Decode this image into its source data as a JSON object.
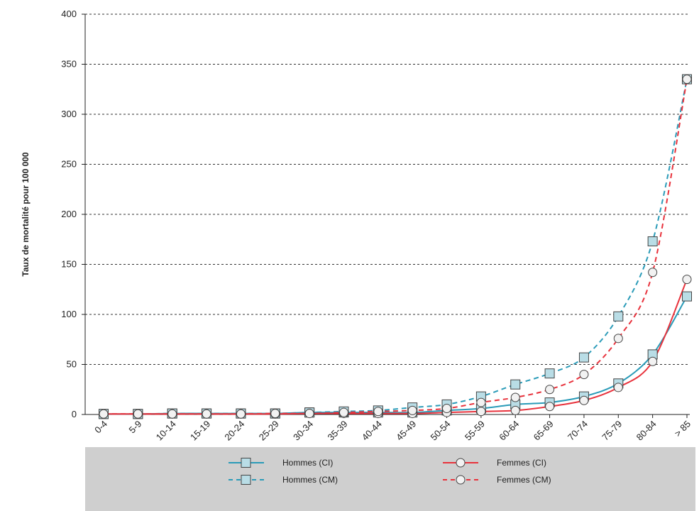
{
  "chart_data": {
    "type": "line",
    "title": "",
    "xlabel": "",
    "ylabel": "Taux de mortalité pour 100 000",
    "ylim": [
      0,
      400
    ],
    "yticks": [
      "0",
      "50",
      "100",
      "150",
      "200",
      "250",
      "300",
      "350",
      "400"
    ],
    "grid": "horizontal dashed",
    "legend_position": "bottom",
    "categories": [
      "0-4",
      "5-9",
      "10-14",
      "15-19",
      "20-24",
      "25-29",
      "30-34",
      "35-39",
      "40-44",
      "45-49",
      "50-54",
      "55-59",
      "60-64",
      "65-69",
      "70-74",
      "75-79",
      "80-84",
      "> 85"
    ],
    "series": [
      {
        "name": "Hommes (CI)",
        "color": "#2a9bb8",
        "dash": false,
        "marker": "square",
        "values": [
          0.5,
          0.5,
          1,
          1,
          1,
          1,
          2,
          2,
          2,
          2,
          4,
          6,
          10,
          12,
          18,
          31,
          60,
          118
        ]
      },
      {
        "name": "Hommes (CM)",
        "color": "#2a9bb8",
        "dash": true,
        "marker": "square",
        "values": [
          0.5,
          0.5,
          1,
          1,
          1,
          1,
          2,
          3,
          4,
          7,
          10,
          18,
          30,
          41,
          57,
          98,
          173,
          335
        ]
      },
      {
        "name": "Femmes (CI)",
        "color": "#e8323c",
        "dash": false,
        "marker": "circle",
        "values": [
          0.5,
          0.5,
          0.5,
          0.5,
          0.5,
          0.5,
          1,
          1,
          1,
          1,
          2,
          3,
          4,
          8,
          14,
          27,
          53,
          135
        ]
      },
      {
        "name": "Femmes (CM)",
        "color": "#e8323c",
        "dash": true,
        "marker": "circle",
        "values": [
          0.5,
          0.5,
          0.5,
          0.5,
          0.5,
          1,
          1,
          2,
          3,
          4,
          6,
          12,
          17,
          25,
          40,
          76,
          142,
          335
        ]
      }
    ]
  },
  "legend": {
    "items": [
      "Hommes (CI)",
      "Hommes (CM)",
      "Femmes (CI)",
      "Femmes (CM)"
    ]
  }
}
